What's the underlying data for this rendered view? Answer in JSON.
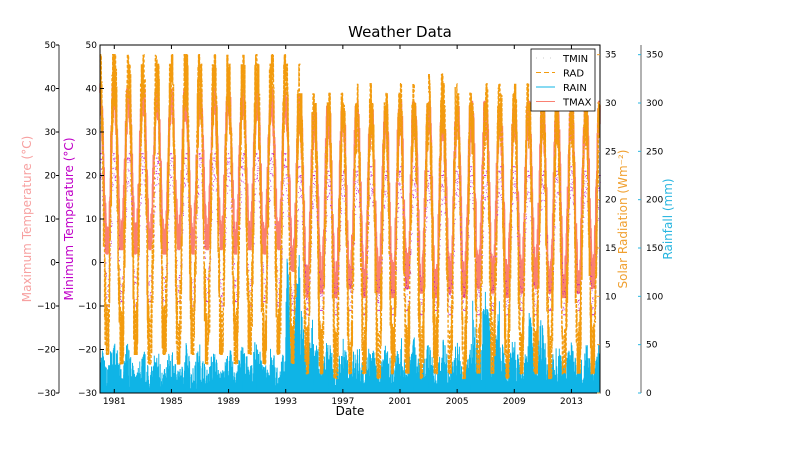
{
  "chart_data": {
    "type": "line",
    "title": "Weather Data",
    "xlabel": "Date",
    "xlim": [
      1980,
      2015
    ],
    "xticks": [
      "1981",
      "1985",
      "1989",
      "1993",
      "1997",
      "2001",
      "2005",
      "2009",
      "2013"
    ],
    "axes": {
      "tmax": {
        "label": "Maximum Temperature ($^\\circ$C)",
        "label_text": "Maximum Temperature (°C)",
        "ylim": [
          -30,
          50
        ],
        "ticks": [
          "−30",
          "−20",
          "−10",
          "0",
          "10",
          "20",
          "30",
          "40",
          "50"
        ],
        "color": "#f7a1a1"
      },
      "tmin": {
        "label_text": "Minimum Temperature (°C)",
        "ylim": [
          -30,
          50
        ],
        "ticks": [
          "−30",
          "−20",
          "−10",
          "0",
          "10",
          "20",
          "30",
          "40",
          "50"
        ],
        "color": "#c000c8"
      },
      "rad": {
        "label_text": "Solar Radiation (Wm⁻²)",
        "ylim": [
          0,
          36
        ],
        "ticks": [
          "0",
          "5",
          "10",
          "15",
          "20",
          "25",
          "30",
          "35"
        ],
        "color": "#f0a030"
      },
      "rain": {
        "label_text": "Rainfall (mm)",
        "ylim": [
          0,
          360
        ],
        "ticks": [
          "0",
          "50",
          "100",
          "150",
          "200",
          "250",
          "300",
          "350"
        ],
        "color": "#29b6e0"
      }
    },
    "legend": {
      "placement": "top-right",
      "entries": [
        "TMIN",
        "RAD",
        "RAIN",
        "TMAX"
      ]
    },
    "grid": false,
    "years": [
      1980,
      1981,
      1982,
      1983,
      1984,
      1985,
      1986,
      1987,
      1988,
      1989,
      1990,
      1991,
      1992,
      1993,
      1994,
      1995,
      1996,
      1997,
      1998,
      1999,
      2000,
      2001,
      2002,
      2003,
      2004,
      2005,
      2006,
      2007,
      2008,
      2009,
      2010,
      2011,
      2012,
      2013,
      2014
    ],
    "series": [
      {
        "name": "TMAX",
        "axis": "tmax",
        "color": "#fa8072",
        "style": "solid",
        "annual_peak": [
          41,
          40,
          39,
          40,
          39,
          40,
          39,
          40,
          40,
          39,
          40,
          39,
          40,
          38,
          35,
          36,
          35,
          36,
          37,
          35,
          36,
          37,
          36,
          37,
          35,
          36,
          37,
          36,
          35,
          36,
          37,
          36,
          35,
          36,
          37
        ],
        "annual_trough": [
          2,
          3,
          2,
          3,
          2,
          3,
          2,
          3,
          3,
          2,
          3,
          2,
          3,
          -2,
          -8,
          -7,
          -8,
          -6,
          -8,
          -7,
          -8,
          -6,
          -7,
          -8,
          -7,
          -8,
          -6,
          -7,
          -8,
          -7,
          -6,
          -7,
          -8,
          -7,
          -6
        ]
      },
      {
        "name": "TMIN",
        "axis": "tmin",
        "color": "#b000c0",
        "style": "dots",
        "annual_peak": [
          25,
          24,
          25,
          24,
          25,
          24,
          25,
          24,
          25,
          24,
          25,
          24,
          25,
          22,
          20,
          21,
          20,
          21,
          22,
          20,
          21,
          22,
          21,
          20,
          21,
          22,
          20,
          21,
          22,
          21,
          20,
          21,
          22,
          21,
          20
        ],
        "annual_trough": [
          -10,
          -9,
          -10,
          -9,
          -10,
          -9,
          -10,
          -9,
          -10,
          -9,
          -10,
          -9,
          -10,
          -11,
          -12,
          -11,
          -12,
          -11,
          -12,
          -11,
          -12,
          -11,
          -12,
          -11,
          -12,
          -11,
          -12,
          -11,
          -12,
          -11,
          -12,
          -11,
          -12,
          -11,
          -12
        ]
      },
      {
        "name": "RAD",
        "axis": "rad",
        "color": "#f29b0e",
        "style": "dashed",
        "annual_peak": [
          35,
          35,
          34,
          35,
          34,
          35,
          35,
          34,
          35,
          34,
          35,
          34,
          35,
          34,
          31,
          30,
          31,
          30,
          32,
          30,
          31,
          32,
          30,
          33,
          32,
          31,
          30,
          32,
          31,
          32,
          30,
          31,
          30,
          31,
          30
        ],
        "annual_trough": [
          4,
          3,
          4,
          3,
          4,
          3,
          4,
          3,
          4,
          3,
          4,
          3,
          4,
          3,
          2,
          2,
          1.5,
          2,
          2,
          1.5,
          2,
          2,
          1.5,
          2,
          2,
          1.5,
          2,
          2,
          1.5,
          2,
          2,
          1.5,
          2,
          2,
          2
        ]
      },
      {
        "name": "RAIN",
        "axis": "rain",
        "color": "#0fb4e6",
        "style": "solid",
        "annual_peak": [
          60,
          55,
          45,
          50,
          50,
          45,
          55,
          50,
          45,
          50,
          60,
          55,
          50,
          160,
          90,
          65,
          55,
          60,
          55,
          50,
          55,
          60,
          55,
          50,
          60,
          55,
          110,
          100,
          60,
          55,
          90,
          60,
          55,
          60,
          55
        ],
        "annual_trough": [
          0,
          0,
          0,
          0,
          0,
          0,
          0,
          0,
          0,
          0,
          0,
          0,
          0,
          0,
          0,
          0,
          0,
          0,
          0,
          0,
          0,
          0,
          0,
          0,
          0,
          0,
          0,
          0,
          0,
          0,
          0,
          0,
          0,
          0,
          0
        ]
      }
    ]
  }
}
